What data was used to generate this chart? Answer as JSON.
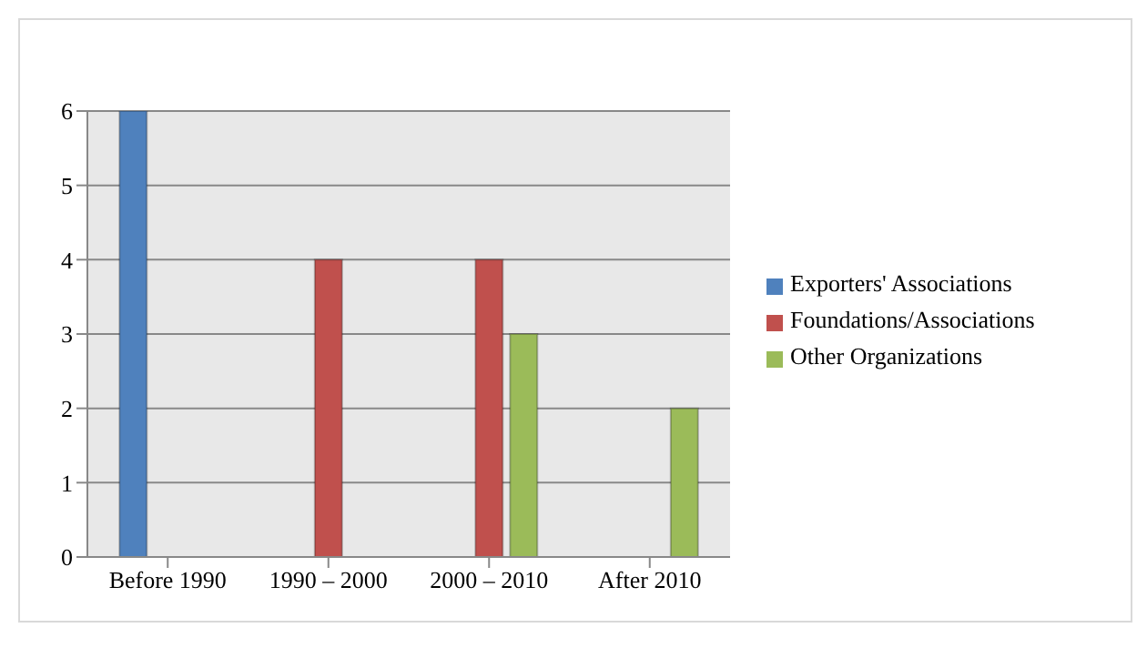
{
  "chart_data": {
    "type": "bar",
    "categories": [
      "Before 1990",
      "1990 – 2000",
      "2000 – 2010",
      "After 2010"
    ],
    "series": [
      {
        "name": "Exporters' Associations",
        "color": "#4f81bd",
        "values": [
          6,
          0,
          0,
          0
        ]
      },
      {
        "name": "Foundations/Associations",
        "color": "#c0504d",
        "values": [
          0,
          4,
          4,
          0
        ]
      },
      {
        "name": "Other Organizations",
        "color": "#9bbb59",
        "values": [
          0,
          0,
          3,
          2
        ]
      }
    ],
    "ylim": [
      0,
      6
    ],
    "yticks": [
      0,
      1,
      2,
      3,
      4,
      5,
      6
    ],
    "grid": "y",
    "legend": "right"
  }
}
